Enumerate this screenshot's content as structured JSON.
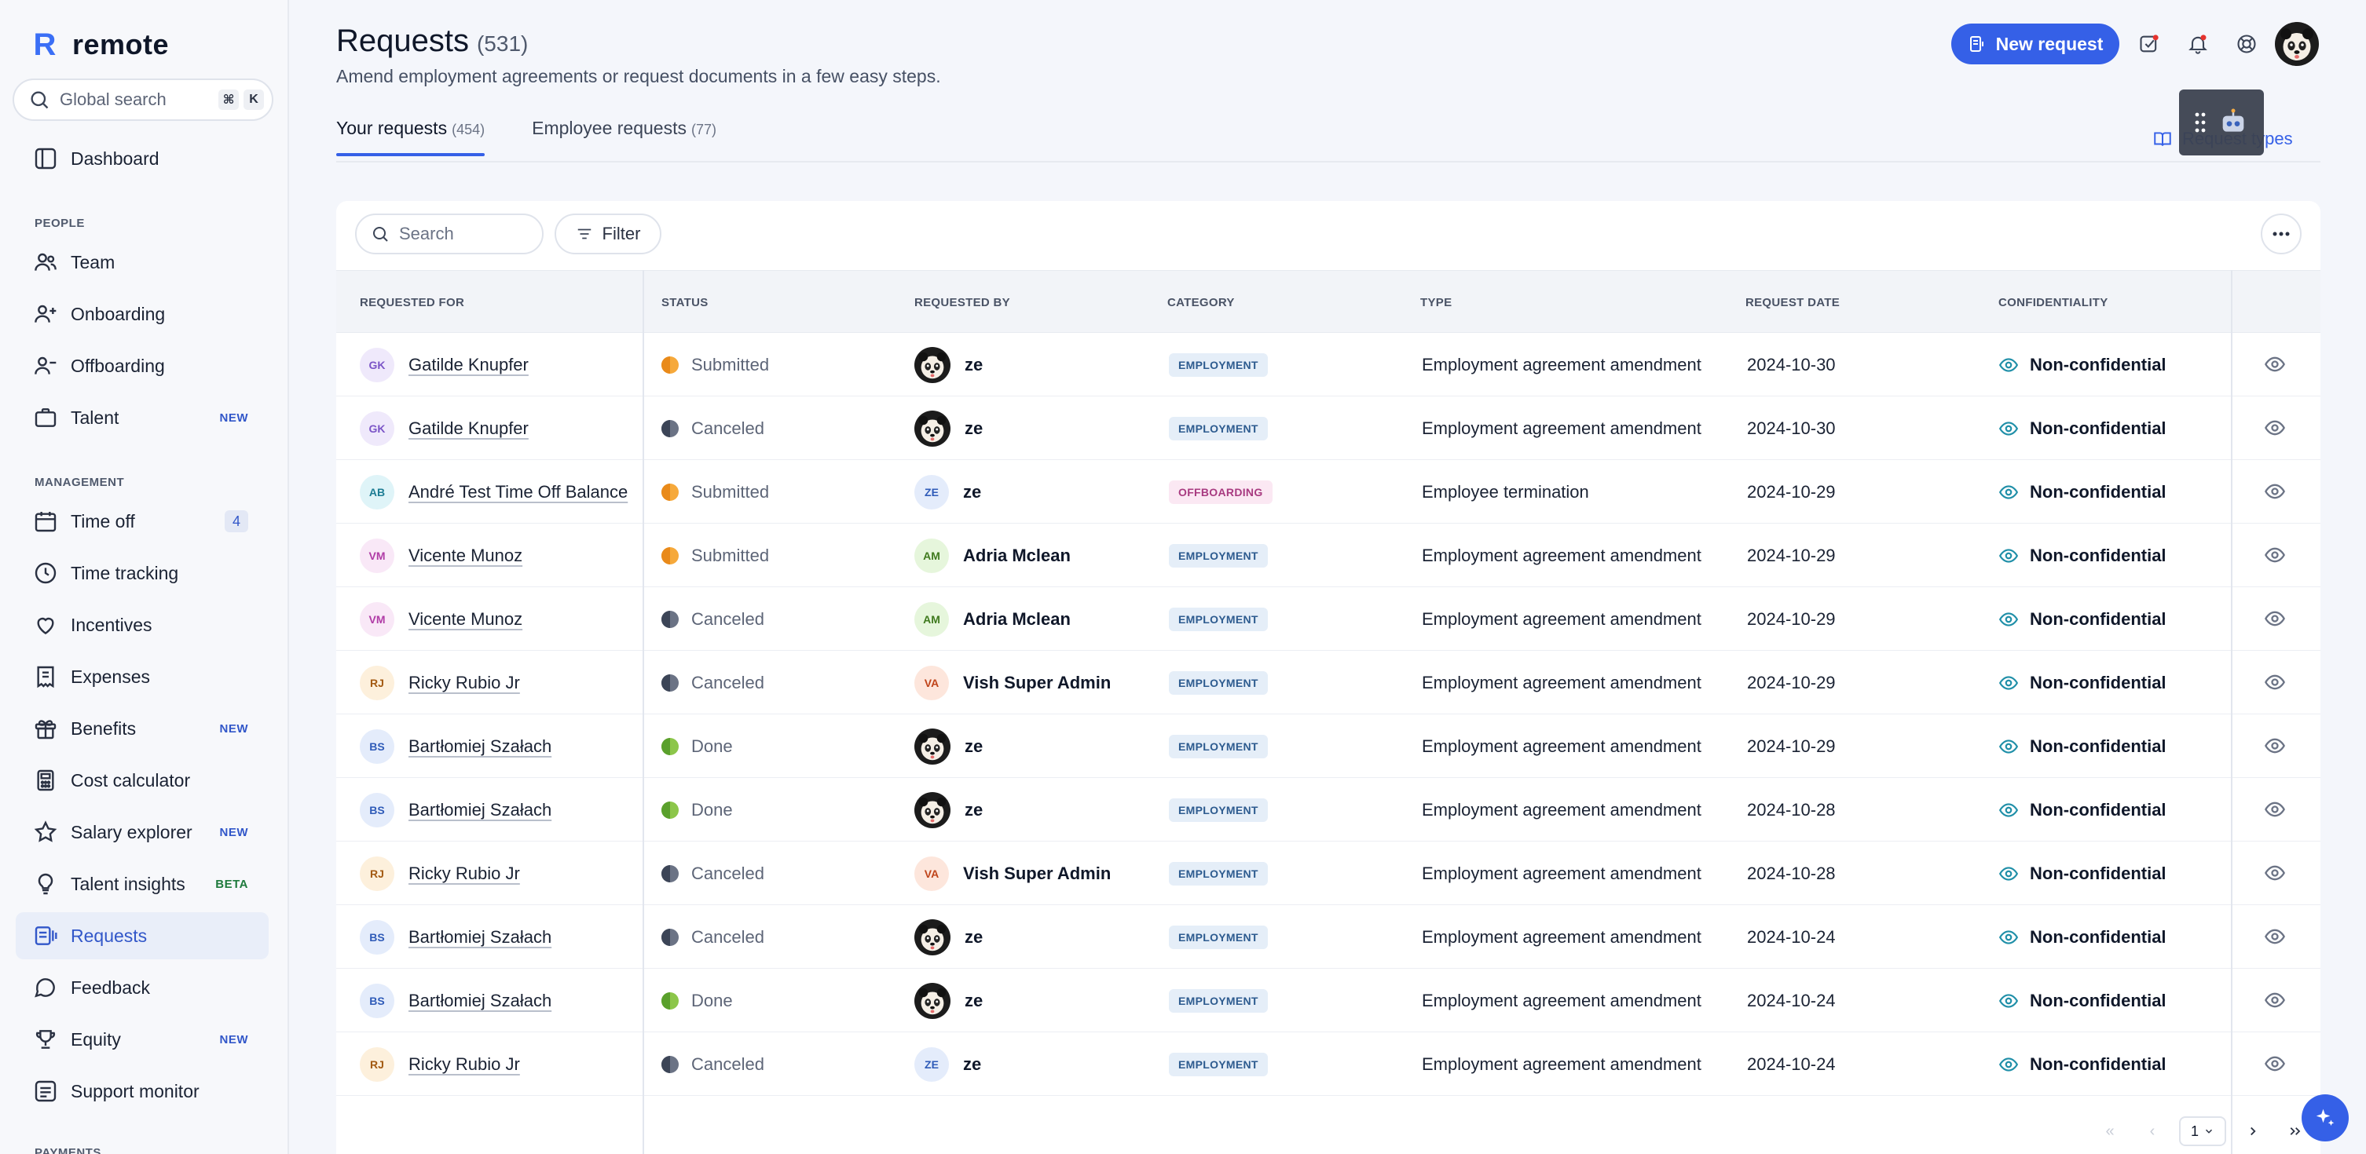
{
  "app": {
    "logo_text": "remote",
    "logo_mark": "R"
  },
  "sidebar": {
    "search_placeholder": "Global search",
    "shortcut_key_1": "⌘",
    "shortcut_key_2": "K",
    "sections": {
      "people": "PEOPLE",
      "management": "MANAGEMENT",
      "payments": "PAYMENTS"
    },
    "items": {
      "dashboard": "Dashboard",
      "team": "Team",
      "onboarding": "Onboarding",
      "offboarding": "Offboarding",
      "talent": "Talent",
      "time_off": "Time off",
      "time_tracking": "Time tracking",
      "incentives": "Incentives",
      "expenses": "Expenses",
      "benefits": "Benefits",
      "cost_calculator": "Cost calculator",
      "salary_explorer": "Salary explorer",
      "talent_insights": "Talent insights",
      "requests": "Requests",
      "feedback": "Feedback",
      "equity": "Equity",
      "support_monitor": "Support monitor"
    },
    "badges": {
      "new": "NEW",
      "beta": "BETA",
      "time_off_count": "4"
    }
  },
  "header": {
    "title": "Requests",
    "count": "(531)",
    "subtitle": "Amend employment agreements or request documents in a few easy steps.",
    "new_request": "New request",
    "request_types": "Request types"
  },
  "tabs": [
    {
      "label": "Your requests",
      "count": "(454)"
    },
    {
      "label": "Employee requests",
      "count": "(77)"
    }
  ],
  "table": {
    "search_placeholder": "Search",
    "filter_label": "Filter",
    "columns": {
      "requested_for": "REQUESTED FOR",
      "status": "STATUS",
      "requested_by": "REQUESTED BY",
      "category": "CATEGORY",
      "type": "TYPE",
      "request_date": "REQUEST DATE",
      "confidentiality": "CONFIDENTIALITY"
    },
    "rows": [
      {
        "for_initials": "GK",
        "for_name": "Gatilde Knupfer",
        "status": "Submitted",
        "by_initials": "",
        "by_name": "ze",
        "category": "EMPLOYMENT",
        "type": "Employment agreement amendment",
        "date": "2024-10-30",
        "confidentiality": "Non-confidential"
      },
      {
        "for_initials": "GK",
        "for_name": "Gatilde Knupfer",
        "status": "Canceled",
        "by_initials": "",
        "by_name": "ze",
        "category": "EMPLOYMENT",
        "type": "Employment agreement amendment",
        "date": "2024-10-30",
        "confidentiality": "Non-confidential"
      },
      {
        "for_initials": "AB",
        "for_name": "André Test Time Off Balance",
        "status": "Submitted",
        "by_initials": "ZE",
        "by_name": "ze",
        "category": "OFFBOARDING",
        "type": "Employee termination",
        "date": "2024-10-29",
        "confidentiality": "Non-confidential"
      },
      {
        "for_initials": "VM",
        "for_name": "Vicente Munoz",
        "status": "Submitted",
        "by_initials": "AM",
        "by_name": "Adria Mclean",
        "category": "EMPLOYMENT",
        "type": "Employment agreement amendment",
        "date": "2024-10-29",
        "confidentiality": "Non-confidential"
      },
      {
        "for_initials": "VM",
        "for_name": "Vicente Munoz",
        "status": "Canceled",
        "by_initials": "AM",
        "by_name": "Adria Mclean",
        "category": "EMPLOYMENT",
        "type": "Employment agreement amendment",
        "date": "2024-10-29",
        "confidentiality": "Non-confidential"
      },
      {
        "for_initials": "RJ",
        "for_name": "Ricky Rubio Jr",
        "status": "Canceled",
        "by_initials": "VA",
        "by_name": "Vish Super Admin",
        "category": "EMPLOYMENT",
        "type": "Employment agreement amendment",
        "date": "2024-10-29",
        "confidentiality": "Non-confidential"
      },
      {
        "for_initials": "BS",
        "for_name": "Bartłomiej Szałach",
        "status": "Done",
        "by_initials": "",
        "by_name": "ze",
        "category": "EMPLOYMENT",
        "type": "Employment agreement amendment",
        "date": "2024-10-29",
        "confidentiality": "Non-confidential"
      },
      {
        "for_initials": "BS",
        "for_name": "Bartłomiej Szałach",
        "status": "Done",
        "by_initials": "",
        "by_name": "ze",
        "category": "EMPLOYMENT",
        "type": "Employment agreement amendment",
        "date": "2024-10-28",
        "confidentiality": "Non-confidential"
      },
      {
        "for_initials": "RJ",
        "for_name": "Ricky Rubio Jr",
        "status": "Canceled",
        "by_initials": "VA",
        "by_name": "Vish Super Admin",
        "category": "EMPLOYMENT",
        "type": "Employment agreement amendment",
        "date": "2024-10-28",
        "confidentiality": "Non-confidential"
      },
      {
        "for_initials": "BS",
        "for_name": "Bartłomiej Szałach",
        "status": "Canceled",
        "by_initials": "",
        "by_name": "ze",
        "category": "EMPLOYMENT",
        "type": "Employment agreement amendment",
        "date": "2024-10-24",
        "confidentiality": "Non-confidential"
      },
      {
        "for_initials": "BS",
        "for_name": "Bartłomiej Szałach",
        "status": "Done",
        "by_initials": "",
        "by_name": "ze",
        "category": "EMPLOYMENT",
        "type": "Employment agreement amendment",
        "date": "2024-10-24",
        "confidentiality": "Non-confidential"
      },
      {
        "for_initials": "RJ",
        "for_name": "Ricky Rubio Jr",
        "status": "Canceled",
        "by_initials": "ZE",
        "by_name": "ze",
        "category": "EMPLOYMENT",
        "type": "Employment agreement amendment",
        "date": "2024-10-24",
        "confidentiality": "Non-confidential"
      }
    ]
  },
  "pagination": {
    "current_page": "1"
  },
  "colors": {
    "accent": "#3560e7",
    "sidebar_bg": "#f7f8fb",
    "active_nav_bg": "#e9eef9"
  }
}
